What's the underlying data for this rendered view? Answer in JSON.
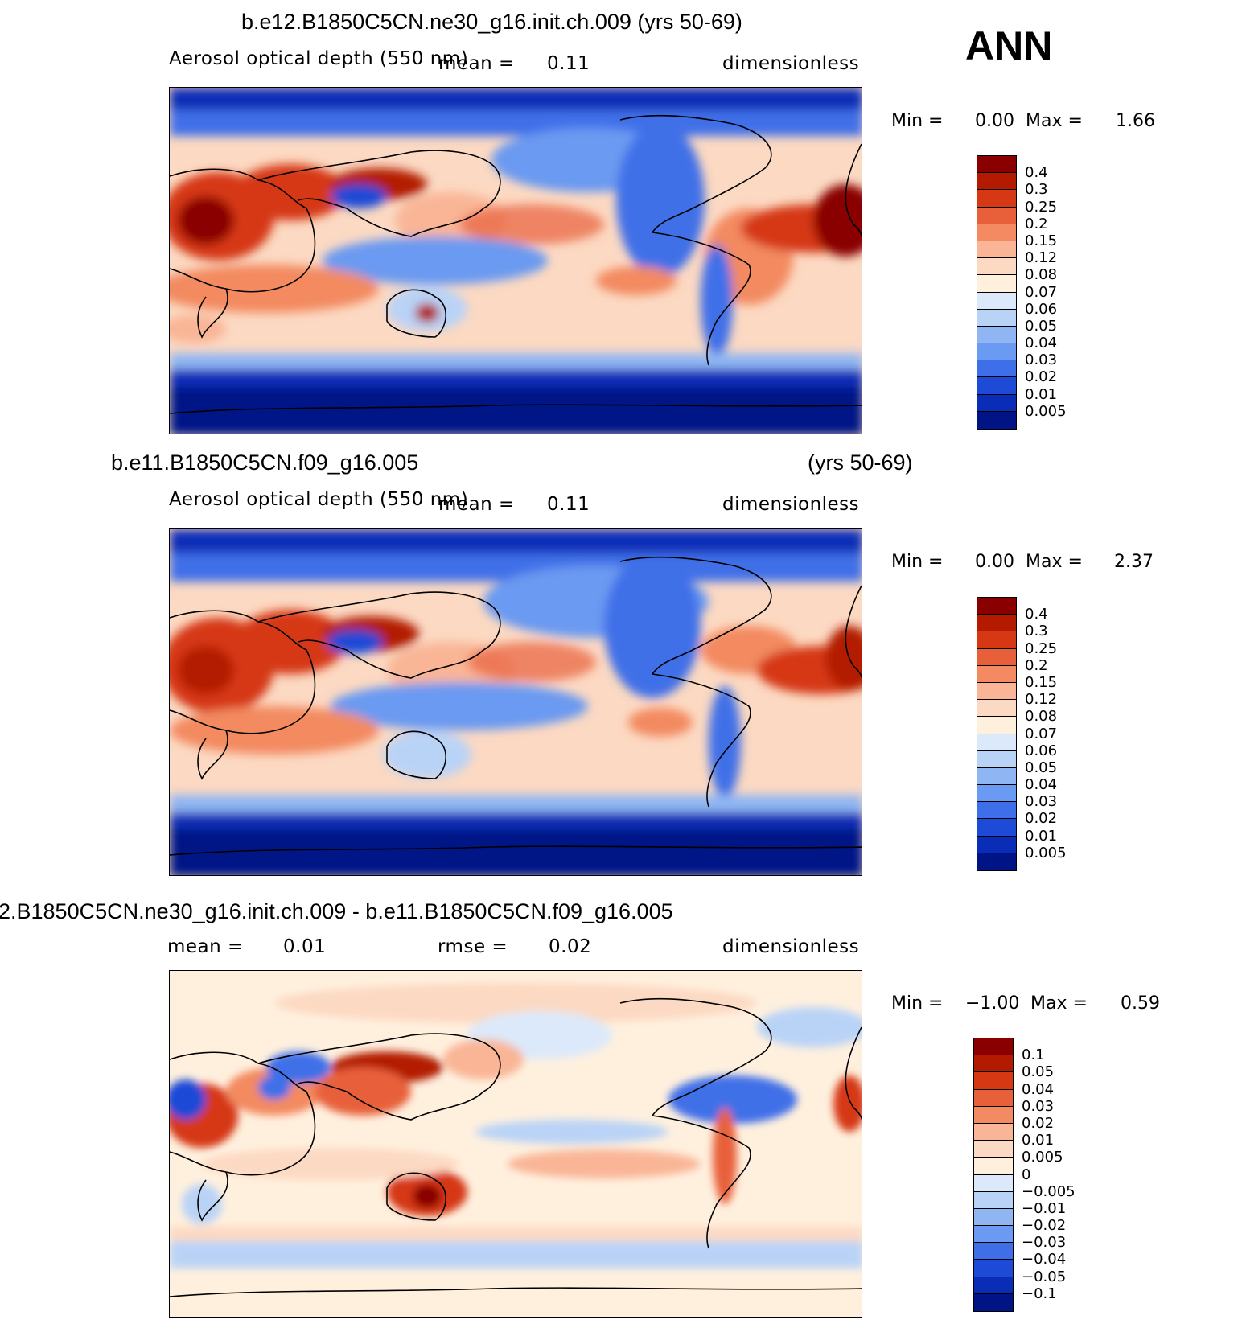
{
  "season_label": "ANN",
  "palettes": {
    "abs": [
      "#8a0000",
      "#b31a00",
      "#d63813",
      "#e8603a",
      "#f38a61",
      "#f9b596",
      "#fcd9c2",
      "#fff0de",
      "#dce9fa",
      "#b9d3f7",
      "#8fb6f3",
      "#6a9af1",
      "#3f6fe8",
      "#1d4ad6",
      "#0a2db7",
      "#001486"
    ],
    "diff": [
      "#8a0000",
      "#b31a00",
      "#d63813",
      "#e8603a",
      "#f38a61",
      "#f9b596",
      "#fcd9c2",
      "#fff0de",
      "#dce9fa",
      "#b9d3f7",
      "#8fb6f3",
      "#6a9af1",
      "#3f6fe8",
      "#1d4ad6",
      "#0a2db7",
      "#001486"
    ]
  },
  "panels": [
    {
      "title": "b.e12.B1850C5CN.ne30_g16.init.ch.009 (yrs 50-69)",
      "title_right": "",
      "variable": "Aerosol optical depth (550 nm)",
      "mean_label": "mean =",
      "mean_value": "0.11",
      "rmse_label": "",
      "rmse_value": "",
      "units": "dimensionless",
      "min_label": "Min =",
      "min_value": "0.00",
      "max_label": "Max =",
      "max_value": "1.66",
      "levels": [
        "0.4",
        "0.3",
        "0.25",
        "0.2",
        "0.15",
        "0.12",
        "0.08",
        "0.07",
        "0.06",
        "0.05",
        "0.04",
        "0.03",
        "0.02",
        "0.01",
        "0.005"
      ],
      "style": "abs"
    },
    {
      "title": "b.e11.B1850C5CN.f09_g16.005",
      "title_right": "(yrs 50-69)",
      "variable": "Aerosol optical depth (550 nm)",
      "mean_label": "mean =",
      "mean_value": "0.11",
      "rmse_label": "",
      "rmse_value": "",
      "units": "dimensionless",
      "min_label": "Min =",
      "min_value": "0.00",
      "max_label": "Max =",
      "max_value": "2.37",
      "levels": [
        "0.4",
        "0.3",
        "0.25",
        "0.2",
        "0.15",
        "0.12",
        "0.08",
        "0.07",
        "0.06",
        "0.05",
        "0.04",
        "0.03",
        "0.02",
        "0.01",
        "0.005"
      ],
      "style": "abs"
    },
    {
      "title": "2.B1850C5CN.ne30_g16.init.ch.009 - b.e11.B1850C5CN.f09_g16.005",
      "title_right": "",
      "variable": "",
      "mean_label": "mean =",
      "mean_value": "0.01",
      "rmse_label": "rmse =",
      "rmse_value": "0.02",
      "units": "dimensionless",
      "min_label": "Min =",
      "min_value": "−1.00",
      "max_label": "Max =",
      "max_value": "0.59",
      "levels": [
        "0.1",
        "0.05",
        "0.04",
        "0.03",
        "0.02",
        "0.01",
        "0.005",
        "0",
        "−0.005",
        "−0.01",
        "−0.02",
        "−0.03",
        "−0.04",
        "−0.05",
        "−0.1"
      ],
      "style": "diff"
    }
  ]
}
